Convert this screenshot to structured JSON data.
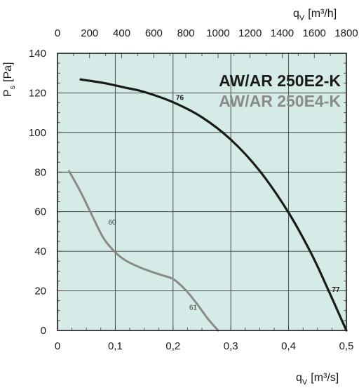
{
  "chart_data": {
    "type": "line",
    "title": "",
    "xlabel": "q",
    "xlabel_sub": "V",
    "xlabel_unit": "[m³/s]",
    "x2label": "q",
    "x2label_sub": "V",
    "x2label_unit": "[m³/h]",
    "ylabel": "P",
    "ylabel_sub": "s",
    "ylabel_unit": "[Pa]",
    "xlim": [
      0,
      0.5
    ],
    "ylim": [
      0,
      140
    ],
    "x2lim": [
      0,
      1800
    ],
    "x_ticks": [
      {
        "value": 0,
        "label": "0"
      },
      {
        "value": 0.1,
        "label": "0,1"
      },
      {
        "value": 0.2,
        "label": "0,2"
      },
      {
        "value": 0.3,
        "label": "0,3"
      },
      {
        "value": 0.4,
        "label": "0,4"
      },
      {
        "value": 0.5,
        "label": "0,5"
      }
    ],
    "x2_ticks": [
      {
        "value": 0,
        "label": "0"
      },
      {
        "value": 200,
        "label": "200"
      },
      {
        "value": 400,
        "label": "400"
      },
      {
        "value": 600,
        "label": "600"
      },
      {
        "value": 800,
        "label": "800"
      },
      {
        "value": 1000,
        "label": "1000"
      },
      {
        "value": 1200,
        "label": "1200"
      },
      {
        "value": 1400,
        "label": "1400"
      },
      {
        "value": 1600,
        "label": "1600"
      },
      {
        "value": 1800,
        "label": "1800"
      }
    ],
    "y_ticks": [
      {
        "value": 0,
        "label": "0"
      },
      {
        "value": 20,
        "label": "20"
      },
      {
        "value": 40,
        "label": "40"
      },
      {
        "value": 60,
        "label": "60"
      },
      {
        "value": 80,
        "label": "80"
      },
      {
        "value": 100,
        "label": "100"
      },
      {
        "value": 120,
        "label": "120"
      },
      {
        "value": 140,
        "label": "140"
      }
    ],
    "grid_x": [
      0.1,
      0.2,
      0.3,
      0.4
    ],
    "grid_y": [
      20,
      40,
      60,
      80,
      100,
      120
    ],
    "grid": true,
    "plot_background": "#d4ebe8",
    "series": [
      {
        "name": "AW/AR 250E2-K",
        "color": "#1a1a1a",
        "x": [
          0.04,
          0.08,
          0.12,
          0.15,
          0.2,
          0.25,
          0.3,
          0.35,
          0.4,
          0.44,
          0.47,
          0.5
        ],
        "y": [
          126.8,
          125.0,
          122.5,
          120.5,
          115.3,
          107.7,
          96.4,
          80.6,
          59.5,
          38.4,
          19.6,
          0
        ],
        "labels": [
          {
            "text": "76",
            "x": 0.205,
            "y": 116.5
          },
          {
            "text": "77",
            "x": 0.475,
            "y": 19.5
          }
        ]
      },
      {
        "name": "AW/AR 250E4-K",
        "color": "#8a8a8a",
        "x": [
          0.02,
          0.04,
          0.06,
          0.08,
          0.1,
          0.12,
          0.15,
          0.18,
          0.2,
          0.22,
          0.24,
          0.26,
          0.278
        ],
        "y": [
          80.5,
          70.0,
          58.0,
          46.5,
          39.5,
          35.0,
          31.0,
          28.0,
          26.0,
          21.0,
          14.0,
          6.0,
          0
        ],
        "labels": [
          {
            "text": "60",
            "x": 0.088,
            "y": 53.5
          },
          {
            "text": "61",
            "x": 0.228,
            "y": 10.5
          }
        ]
      }
    ],
    "legend": "top-right"
  }
}
